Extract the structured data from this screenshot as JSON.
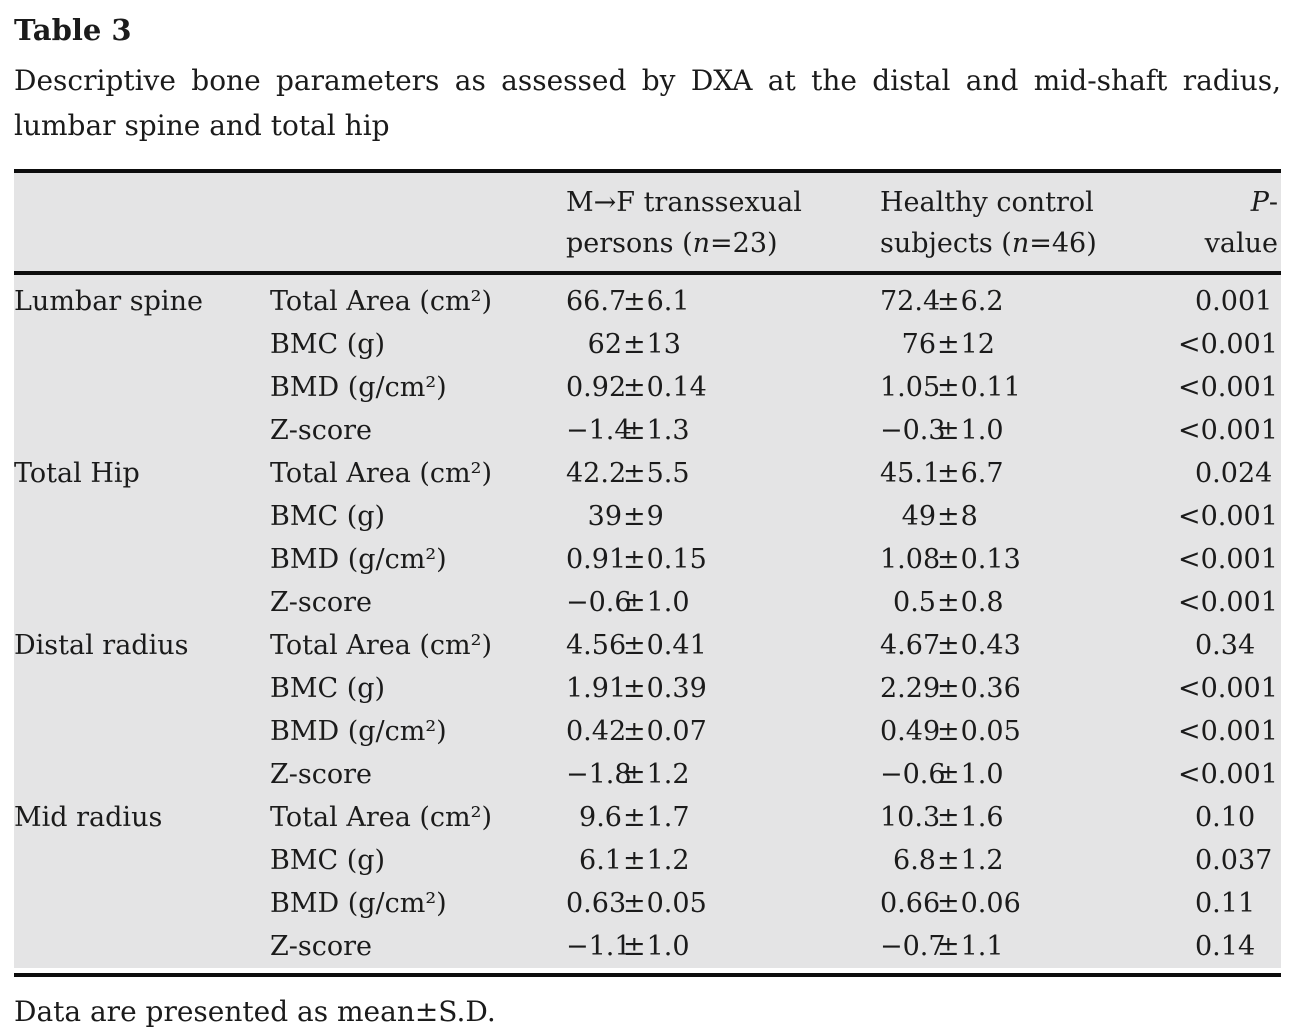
{
  "title": "Table 3",
  "caption_line1": "Descriptive bone parameters as assessed by DXA at the distal and mid-shaft radius,",
  "caption_line2": "lumbar spine and total hip",
  "footnote": "Data are presented as mean±S.D.",
  "colors": {
    "table_background": "#e4e4e5",
    "rule": "#0d0d0d",
    "text": "#1b1b1b"
  },
  "table": {
    "header": {
      "col3_line1": "M→F transsexual",
      "col3_line2_pre": "persons (",
      "col3_line2_var": "n",
      "col3_line2_post": "=23)",
      "col4_line1": "Healthy control",
      "col4_line2_pre": "subjects (",
      "col4_line2_var": "n",
      "col4_line2_post": "=46)",
      "p_var": "P",
      "p_rest": "-value"
    },
    "groups": [
      {
        "region": "Lumbar spine",
        "rows": [
          {
            "param": "Total Area (cm²)",
            "transsexual": "66.7±6.1",
            "control": "72.4±6.2",
            "p": "0.001"
          },
          {
            "param": "BMC (g)",
            "transsexual": "62±13",
            "control": "76±12",
            "p": "<0.001"
          },
          {
            "param": "BMD (g/cm²)",
            "transsexual": "0.92±0.14",
            "control": "1.05±0.11",
            "p": "<0.001"
          },
          {
            "param": "Z-score",
            "transsexual": "−1.4±1.3",
            "control": "−0.3±1.0",
            "p": "<0.001"
          }
        ]
      },
      {
        "region": "Total Hip",
        "rows": [
          {
            "param": "Total Area (cm²)",
            "transsexual": "42.2±5.5",
            "control": "45.1±6.7",
            "p": "0.024"
          },
          {
            "param": "BMC (g)",
            "transsexual": "39±9",
            "control": "49±8",
            "p": "<0.001"
          },
          {
            "param": "BMD (g/cm²)",
            "transsexual": "0.91±0.15",
            "control": "1.08±0.13",
            "p": "<0.001"
          },
          {
            "param": "Z-score",
            "transsexual": "−0.6±1.0",
            "control": "0.5±0.8",
            "p": "<0.001"
          }
        ]
      },
      {
        "region": "Distal radius",
        "rows": [
          {
            "param": "Total Area (cm²)",
            "transsexual": "4.56±0.41",
            "control": "4.67±0.43",
            "p": "0.34"
          },
          {
            "param": "BMC (g)",
            "transsexual": "1.91±0.39",
            "control": "2.29±0.36",
            "p": "<0.001"
          },
          {
            "param": "BMD (g/cm²)",
            "transsexual": "0.42±0.07",
            "control": "0.49±0.05",
            "p": "<0.001"
          },
          {
            "param": "Z-score",
            "transsexual": "−1.8±1.2",
            "control": "−0.6±1.0",
            "p": "<0.001"
          }
        ]
      },
      {
        "region": "Mid radius",
        "rows": [
          {
            "param": "Total Area (cm²)",
            "transsexual": "9.6±1.7",
            "control": "10.3±1.6",
            "p": "0.10"
          },
          {
            "param": "BMC (g)",
            "transsexual": "6.1±1.2",
            "control": "6.8±1.2",
            "p": "0.037"
          },
          {
            "param": "BMD (g/cm²)",
            "transsexual": "0.63±0.05",
            "control": "0.66±0.06",
            "p": "0.11"
          },
          {
            "param": "Z-score",
            "transsexual": "−1.1±1.0",
            "control": "−0.7±1.1",
            "p": "0.14"
          }
        ]
      }
    ]
  }
}
